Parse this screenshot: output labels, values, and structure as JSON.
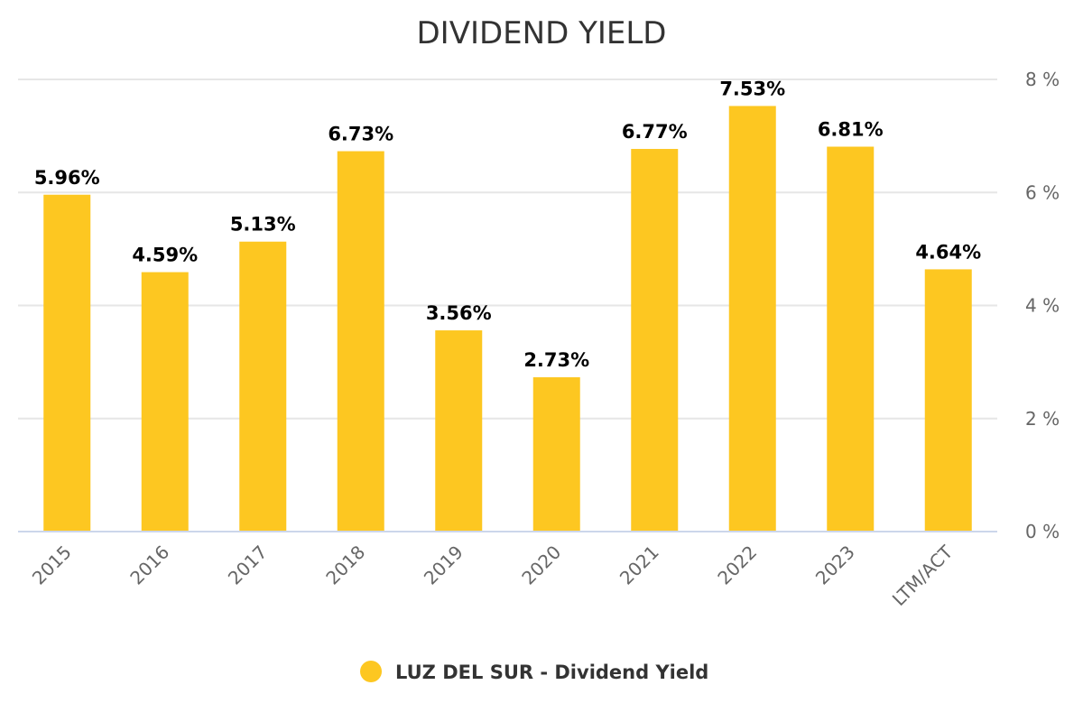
{
  "chart_data": {
    "type": "bar",
    "title": "DIVIDEND YIELD",
    "categories": [
      "2015",
      "2016",
      "2017",
      "2018",
      "2019",
      "2020",
      "2021",
      "2022",
      "2023",
      "LTM/ACT"
    ],
    "series": [
      {
        "name": "LUZ DEL SUR - Dividend Yield",
        "values": [
          5.96,
          4.59,
          5.13,
          6.73,
          3.56,
          2.73,
          6.77,
          7.53,
          6.81,
          4.64
        ],
        "labels": [
          "5.96%",
          "4.59%",
          "5.13%",
          "6.73%",
          "3.56%",
          "2.73%",
          "6.77%",
          "7.53%",
          "6.81%",
          "4.64%"
        ],
        "color": "#fdc721"
      }
    ],
    "ylim": [
      0,
      8
    ],
    "yticks": [
      0,
      2,
      4,
      6,
      8
    ],
    "ytick_labels": [
      "0 %",
      "2 %",
      "4 %",
      "6 %",
      "8 %"
    ],
    "yaxis_side": "right",
    "xlabel": "",
    "ylabel": "",
    "grid": true,
    "legend_position": "bottom-center"
  },
  "colors": {
    "bar": "#fdc721",
    "grid": "#e6e6e6",
    "axis": "#ccd6eb",
    "tick_text": "#666666",
    "title_text": "#333333",
    "label_text": "#000000"
  }
}
